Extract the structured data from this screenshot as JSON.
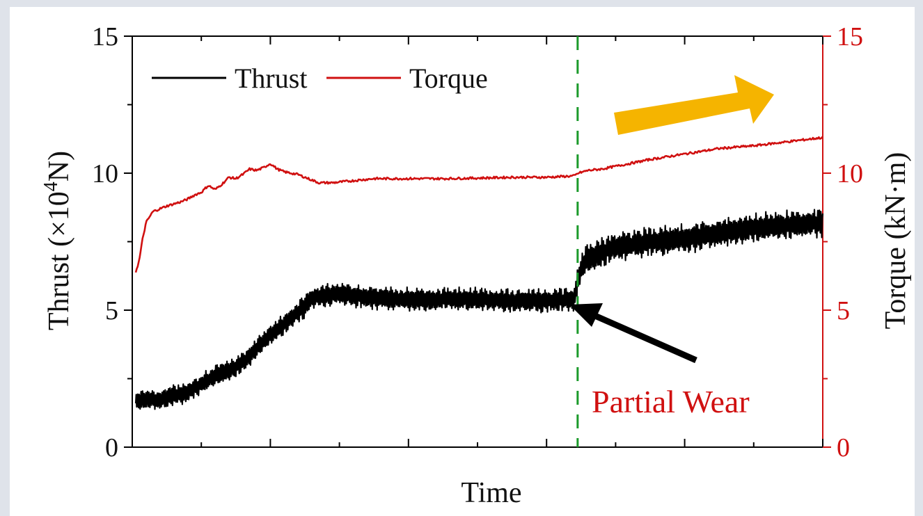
{
  "chart_data": {
    "type": "line",
    "xlabel": "Time",
    "ylabel_prefix": "Thrust (×10",
    "ylabel_sup": "4",
    "ylabel_suffix": "N)",
    "y2label": "Torque (kN·m)",
    "ylim": [
      0,
      15
    ],
    "y2lim": [
      0,
      15
    ],
    "yticks": [
      0,
      5,
      10,
      15
    ],
    "y2ticks": [
      0,
      5,
      10,
      15
    ],
    "xlim": [
      0,
      100
    ],
    "legend_position": "top-left",
    "legend": [
      "Thrust",
      "Torque"
    ],
    "annotation": "Partial Wear",
    "event_x": 64.5,
    "colors": {
      "thrust": "#000000",
      "torque": "#d01010",
      "event_line": "#1a9a2a",
      "trend_arrow": "#f5b400",
      "axis_right": "#d01010"
    },
    "series": [
      {
        "name": "Thrust",
        "axis": "left",
        "amplitude": 0.45,
        "x": [
          0.5,
          2,
          4,
          6,
          8,
          10,
          12,
          14,
          16,
          18,
          20,
          22,
          24,
          26,
          27,
          30,
          33,
          35,
          40,
          45,
          50,
          55,
          60,
          64,
          64.6,
          65.5,
          67,
          70,
          75,
          80,
          85,
          90,
          95,
          100
        ],
        "values": [
          1.6,
          1.8,
          1.7,
          1.9,
          2.0,
          2.3,
          2.6,
          2.8,
          3.1,
          3.6,
          4.1,
          4.5,
          4.9,
          5.4,
          5.5,
          5.6,
          5.5,
          5.45,
          5.4,
          5.4,
          5.4,
          5.35,
          5.35,
          5.4,
          6.2,
          6.8,
          7.0,
          7.3,
          7.5,
          7.6,
          7.8,
          8.0,
          8.1,
          8.2
        ]
      },
      {
        "name": "Torque",
        "axis": "right",
        "x": [
          0.5,
          1,
          1.5,
          2,
          3,
          5,
          7,
          8,
          9,
          10,
          11,
          12,
          13,
          14,
          15,
          16,
          17,
          18,
          19,
          20,
          21,
          22,
          23,
          24,
          25,
          27,
          29,
          31,
          33,
          35,
          38,
          41,
          45,
          50,
          55,
          60,
          64,
          64.6,
          66,
          68,
          72,
          75,
          80,
          85,
          90,
          95,
          100
        ],
        "values": [
          6.4,
          6.8,
          7.6,
          8.2,
          8.6,
          8.8,
          8.95,
          9.05,
          9.2,
          9.3,
          9.55,
          9.4,
          9.6,
          9.85,
          9.8,
          9.95,
          10.15,
          10.1,
          10.2,
          10.35,
          10.15,
          10.05,
          10.0,
          9.95,
          9.85,
          9.65,
          9.65,
          9.7,
          9.75,
          9.8,
          9.8,
          9.8,
          9.8,
          9.82,
          9.85,
          9.85,
          9.9,
          10.0,
          10.1,
          10.15,
          10.35,
          10.5,
          10.7,
          10.9,
          11.0,
          11.15,
          11.3
        ]
      }
    ]
  }
}
